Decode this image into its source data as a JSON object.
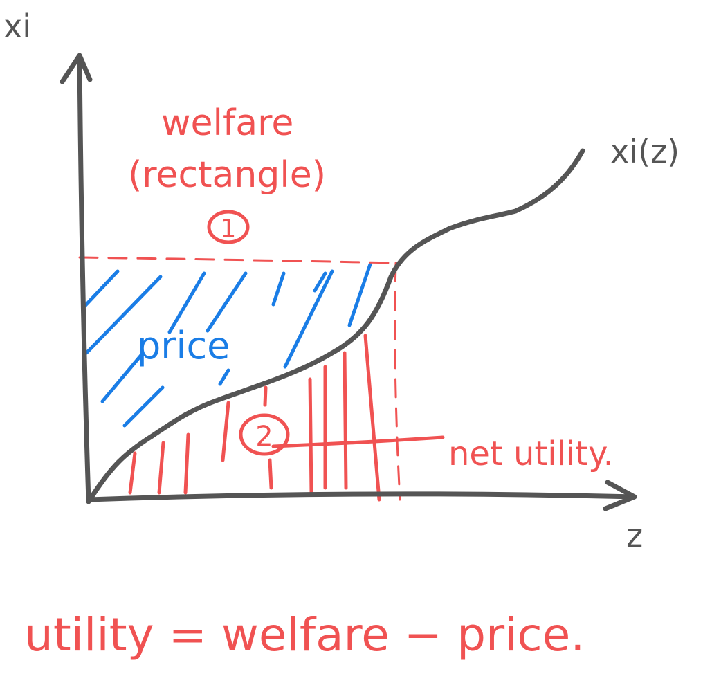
{
  "axes": {
    "y_label": "xi",
    "x_label": "z"
  },
  "curve": {
    "label": "xi(z)"
  },
  "annotations": {
    "welfare_line1": "welfare",
    "welfare_line2": "(rectangle)",
    "welfare_marker": "1",
    "price": "price",
    "net_utility_marker": "2",
    "net_utility": "net utility."
  },
  "equation": "utility = welfare − price.",
  "colors": {
    "ink": "#555555",
    "red": "#f05252",
    "blue": "#1a7de6"
  }
}
